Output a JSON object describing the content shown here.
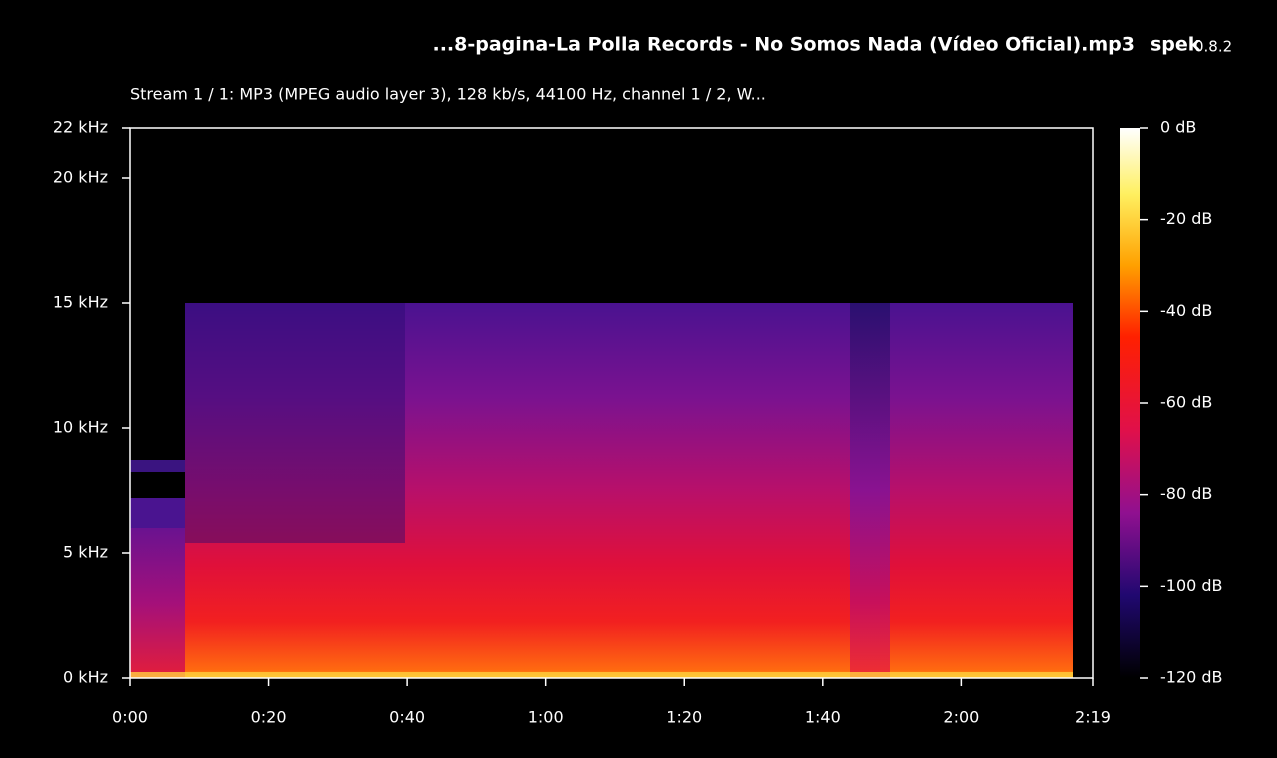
{
  "chart_data": {
    "type": "spectrogram",
    "title": "...8-pagina-La Polla Records - No Somos Nada (Vídeo Oficial).mp3",
    "app_name": "spek",
    "app_version": "0.8.2",
    "subtitle": "Stream 1 / 1: MP3 (MPEG audio layer 3), 128 kb/s, 44100 Hz, channel 1 / 2, W...",
    "xlim": [
      0,
      139
    ],
    "xticks": [
      {
        "value": 0,
        "label": "0:00"
      },
      {
        "value": 20,
        "label": "0:20"
      },
      {
        "value": 40,
        "label": "0:40"
      },
      {
        "value": 60,
        "label": "1:00"
      },
      {
        "value": 80,
        "label": "1:20"
      },
      {
        "value": 100,
        "label": "1:40"
      },
      {
        "value": 120,
        "label": "2:00"
      },
      {
        "value": 139,
        "label": "2:19"
      }
    ],
    "ylim": [
      0,
      22
    ],
    "yticks": [
      {
        "value": 0,
        "label": "0 kHz"
      },
      {
        "value": 5,
        "label": "5 kHz"
      },
      {
        "value": 10,
        "label": "10 kHz"
      },
      {
        "value": 15,
        "label": "15 kHz"
      },
      {
        "value": 20,
        "label": "20 kHz"
      },
      {
        "value": 22,
        "label": "22 kHz"
      }
    ],
    "zlim": [
      -120,
      0
    ],
    "zticks": [
      {
        "value": 0,
        "label": "0 dB"
      },
      {
        "value": -20,
        "label": "-20 dB"
      },
      {
        "value": -40,
        "label": "-40 dB"
      },
      {
        "value": -60,
        "label": "-60 dB"
      },
      {
        "value": -80,
        "label": "-80 dB"
      },
      {
        "value": -100,
        "label": "-100 dB"
      },
      {
        "value": -120,
        "label": "-120 dB"
      }
    ]
  }
}
